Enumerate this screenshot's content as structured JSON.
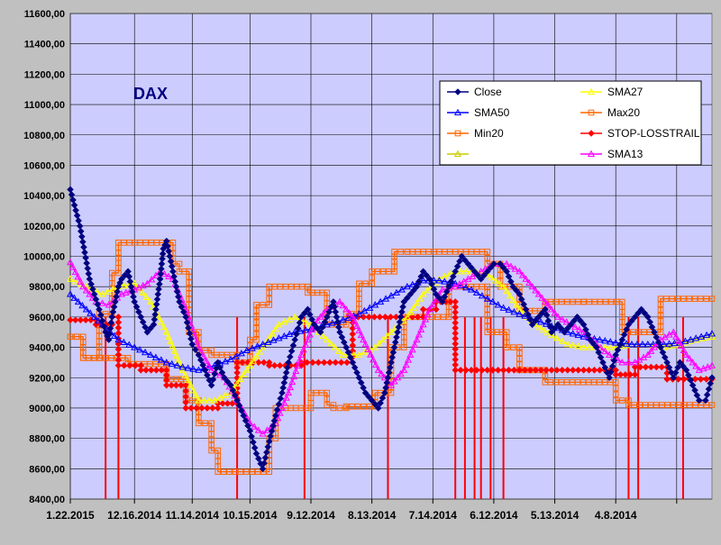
{
  "chart_data": {
    "type": "line",
    "title": "DAX",
    "ylim": [
      8400,
      11600
    ],
    "y_ticks": [
      8400,
      8600,
      8800,
      9000,
      9200,
      9400,
      9600,
      9800,
      10000,
      10200,
      10400,
      10600,
      10800,
      11000,
      11200,
      11400,
      11600
    ],
    "y_tick_labels": [
      "8400,00",
      "8600,00",
      "8800,00",
      "9000,00",
      "9200,00",
      "9400,00",
      "9600,00",
      "9800,00",
      "10000,00",
      "10200,00",
      "10400,00",
      "10600,00",
      "10800,00",
      "11000,00",
      "11200,00",
      "11400,00",
      "11600,00"
    ],
    "x_range": [
      0,
      200
    ],
    "x_ticks": [
      0,
      20,
      38,
      56,
      75,
      94,
      113,
      132,
      151,
      170,
      189
    ],
    "x_tick_labels": [
      "1.22.2015",
      "12.16.2014",
      "11.14.2014",
      "10.15.2014",
      "9.12.2014",
      "8.13.2014",
      "7.14.2014",
      "6.12.2014",
      "5.13.2014",
      "4.8.2014",
      ""
    ],
    "grid": true,
    "legend_position": "top-right",
    "colors": {
      "plot_bg": "#ccccff",
      "outer_bg": "#c0c0c0",
      "grid": "#000000",
      "title": "#000080"
    },
    "series": [
      {
        "name": "Close",
        "color": "#000080",
        "marker": "diamond",
        "x": [
          0,
          3,
          6,
          9,
          11,
          12,
          13,
          15,
          16,
          18,
          20,
          22,
          24,
          26,
          28,
          29,
          30,
          31,
          32,
          34,
          36,
          38,
          40,
          42,
          44,
          46,
          48,
          50,
          52,
          54,
          56,
          58,
          60,
          62,
          64,
          66,
          68,
          70,
          72,
          74,
          76,
          78,
          80,
          82,
          84,
          86,
          88,
          90,
          92,
          94,
          96,
          98,
          100,
          102,
          104,
          106,
          108,
          110,
          112,
          114,
          116,
          118,
          120,
          122,
          124,
          126,
          128,
          130,
          132,
          134,
          136,
          138,
          140,
          142,
          144,
          146,
          148,
          150,
          152,
          154,
          156,
          158,
          160,
          162,
          164,
          166,
          168,
          170,
          172,
          174,
          176,
          178,
          180,
          182,
          184,
          186,
          188,
          190,
          192,
          194,
          196,
          198,
          200
        ],
        "y": [
          10440,
          10200,
          9850,
          9650,
          9500,
          9450,
          9600,
          9800,
          9850,
          9900,
          9700,
          9600,
          9500,
          9550,
          9850,
          10050,
          10100,
          10000,
          9900,
          9700,
          9600,
          9420,
          9350,
          9250,
          9150,
          9300,
          9200,
          9150,
          9050,
          8950,
          8850,
          8700,
          8600,
          8780,
          8950,
          9100,
          9300,
          9450,
          9600,
          9650,
          9550,
          9500,
          9600,
          9700,
          9500,
          9400,
          9300,
          9200,
          9100,
          9050,
          9000,
          9100,
          9300,
          9500,
          9700,
          9750,
          9800,
          9900,
          9850,
          9750,
          9700,
          9800,
          9900,
          10000,
          9950,
          9900,
          9850,
          9900,
          9950,
          9950,
          9900,
          9800,
          9750,
          9650,
          9550,
          9600,
          9650,
          9500,
          9550,
          9500,
          9550,
          9600,
          9550,
          9450,
          9400,
          9300,
          9200,
          9350,
          9450,
          9550,
          9600,
          9650,
          9600,
          9500,
          9400,
          9300,
          9200,
          9300,
          9250,
          9150,
          9050,
          9050,
          9200
        ]
      },
      {
        "name": "SMA27",
        "color": "#ffff00",
        "marker": "triangle",
        "x": [
          0,
          5,
          10,
          15,
          20,
          25,
          30,
          35,
          40,
          45,
          50,
          55,
          60,
          65,
          70,
          75,
          80,
          85,
          90,
          95,
          100,
          105,
          110,
          115,
          120,
          125,
          130,
          135,
          140,
          145,
          150,
          155,
          160,
          165,
          170,
          175,
          180,
          185,
          190,
          195,
          200
        ],
        "y": [
          9850,
          9800,
          9750,
          9800,
          9820,
          9700,
          9500,
          9250,
          9050,
          9050,
          9100,
          9250,
          9400,
          9550,
          9600,
          9550,
          9450,
          9350,
          9350,
          9400,
          9500,
          9600,
          9750,
          9850,
          9900,
          9900,
          9880,
          9800,
          9650,
          9550,
          9480,
          9420,
          9400,
          9400,
          9400,
          9420,
          9420,
          9400,
          9420,
          9450,
          9470
        ]
      },
      {
        "name": "SMA50",
        "color": "#0000ff",
        "marker": "triangle",
        "x": [
          0,
          5,
          10,
          15,
          20,
          25,
          30,
          35,
          40,
          45,
          50,
          55,
          60,
          65,
          70,
          75,
          80,
          85,
          90,
          95,
          100,
          105,
          110,
          115,
          120,
          125,
          130,
          135,
          140,
          145,
          150,
          155,
          160,
          165,
          170,
          175,
          180,
          185,
          190,
          195,
          200
        ],
        "y": [
          9750,
          9650,
          9550,
          9450,
          9400,
          9350,
          9300,
          9270,
          9250,
          9280,
          9320,
          9380,
          9420,
          9460,
          9500,
          9520,
          9550,
          9580,
          9620,
          9680,
          9740,
          9800,
          9840,
          9840,
          9820,
          9780,
          9720,
          9660,
          9620,
          9580,
          9540,
          9500,
          9470,
          9450,
          9430,
          9420,
          9420,
          9420,
          9430,
          9460,
          9490
        ]
      },
      {
        "name": "Max20",
        "color": "#ff6600",
        "marker": "square",
        "x": [
          0,
          4,
          4,
          9,
          9,
          13,
          13,
          15,
          15,
          32,
          32,
          34,
          34,
          37,
          37,
          40,
          40,
          44,
          44,
          52,
          52,
          56,
          56,
          58,
          58,
          62,
          62,
          74,
          74,
          80,
          80,
          86,
          86,
          90,
          90,
          94,
          94,
          101,
          101,
          105,
          105,
          130,
          130,
          134,
          134,
          140,
          140,
          148,
          148,
          160,
          160,
          172,
          172,
          184,
          184,
          200
        ],
        "y": [
          9470,
          9470,
          9330,
          9330,
          9620,
          9620,
          9890,
          9890,
          10090,
          10090,
          9950,
          9950,
          9900,
          9900,
          9500,
          9500,
          9380,
          9380,
          9350,
          9350,
          9300,
          9300,
          9450,
          9450,
          9680,
          9680,
          9800,
          9800,
          9760,
          9760,
          9550,
          9550,
          9620,
          9620,
          9820,
          9820,
          9900,
          9900,
          10030,
          10030,
          10030,
          10030,
          9950,
          9950,
          9800,
          9800,
          9640,
          9640,
          9700,
          9700,
          9700,
          9700,
          9500,
          9500,
          9720,
          9720
        ]
      },
      {
        "name": "Min20",
        "color": "#ff6600",
        "marker": "square",
        "x": [
          0,
          4,
          4,
          18,
          18,
          30,
          30,
          36,
          36,
          40,
          40,
          44,
          44,
          46,
          46,
          62,
          62,
          64,
          64,
          75,
          75,
          80,
          80,
          82,
          82,
          86,
          86,
          95,
          95,
          100,
          100,
          104,
          104,
          118,
          118,
          130,
          130,
          136,
          136,
          140,
          140,
          148,
          148,
          170,
          170,
          174,
          174,
          200
        ],
        "y": [
          9470,
          9470,
          9330,
          9330,
          9290,
          9290,
          9190,
          9190,
          9050,
          9050,
          8900,
          8900,
          8720,
          8720,
          8580,
          8580,
          8800,
          8800,
          9000,
          9000,
          9100,
          9100,
          9020,
          9020,
          9000,
          9000,
          9010,
          9010,
          9100,
          9100,
          9400,
          9400,
          9600,
          9600,
          9800,
          9800,
          9500,
          9500,
          9400,
          9400,
          9250,
          9250,
          9170,
          9170,
          9050,
          9050,
          9020,
          9020
        ]
      },
      {
        "name": "STOP-LOSSTRAIL",
        "color": "#ff0000",
        "marker": "diamond",
        "x": [
          0,
          8,
          8,
          13,
          13,
          15,
          15,
          22,
          22,
          30,
          30,
          36,
          36,
          46,
          46,
          52,
          52,
          62,
          62,
          72,
          72,
          88,
          88,
          110,
          110,
          114,
          114,
          120,
          120,
          170,
          170,
          176,
          176,
          186,
          186,
          200
        ],
        "y": [
          9580,
          9580,
          9550,
          9550,
          9600,
          9600,
          9280,
          9280,
          9250,
          9250,
          9150,
          9150,
          9000,
          9000,
          9030,
          9030,
          9300,
          9300,
          9280,
          9280,
          9300,
          9300,
          9600,
          9600,
          9650,
          9650,
          9700,
          9700,
          9250,
          9250,
          9220,
          9220,
          9270,
          9270,
          9190,
          9190
        ]
      },
      {
        "name": "SMA13",
        "color": "#ff00ff",
        "marker": "triangle",
        "x": [
          0,
          4,
          8,
          12,
          16,
          20,
          24,
          28,
          32,
          36,
          40,
          44,
          48,
          52,
          56,
          60,
          64,
          68,
          72,
          76,
          80,
          84,
          88,
          92,
          96,
          100,
          104,
          108,
          112,
          116,
          120,
          124,
          128,
          132,
          136,
          140,
          144,
          148,
          152,
          156,
          160,
          164,
          168,
          172,
          176,
          180,
          184,
          188,
          192,
          196,
          200
        ],
        "y": [
          9960,
          9800,
          9700,
          9680,
          9750,
          9780,
          9820,
          9900,
          9850,
          9650,
          9400,
          9250,
          9200,
          9050,
          8900,
          8830,
          8900,
          9100,
          9350,
          9550,
          9650,
          9700,
          9600,
          9420,
          9250,
          9150,
          9250,
          9450,
          9650,
          9780,
          9800,
          9850,
          9900,
          9950,
          9950,
          9900,
          9800,
          9700,
          9600,
          9550,
          9500,
          9420,
          9350,
          9300,
          9300,
          9350,
          9450,
          9500,
          9350,
          9250,
          9280
        ]
      },
      {
        "name": "",
        "color": "#cccc00",
        "marker": "triangle",
        "x": [],
        "y": []
      }
    ],
    "signal_x": [
      11,
      15,
      52,
      73,
      99,
      120,
      123,
      126,
      128,
      131,
      135,
      174,
      177,
      191
    ]
  }
}
